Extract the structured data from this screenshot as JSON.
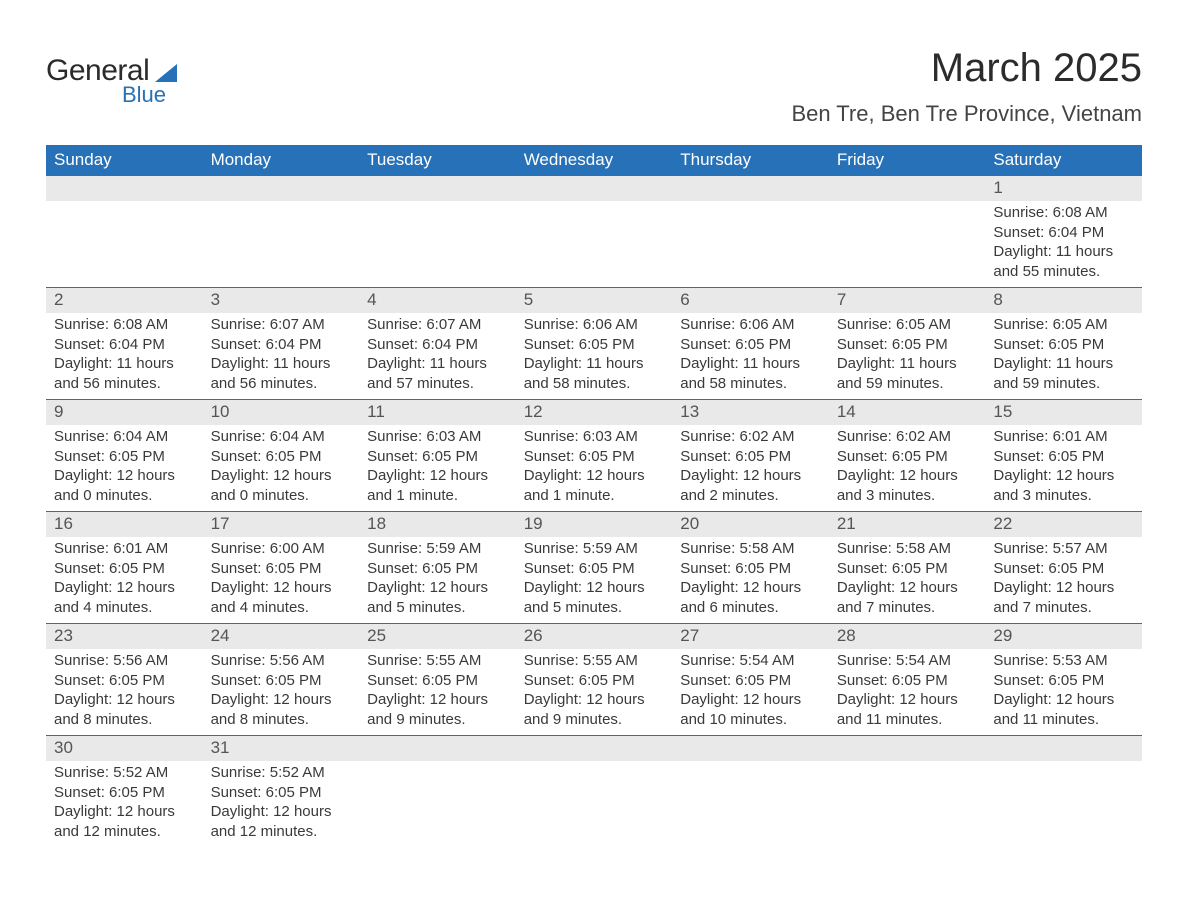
{
  "logo": {
    "text1": "General",
    "text2": "Blue"
  },
  "title": "March 2025",
  "location": "Ben Tre, Ben Tre Province, Vietnam",
  "colors": {
    "header_bg": "#2671b8",
    "header_text": "#ffffff",
    "daynum_bg": "#e9e9e9",
    "daynum_text": "#555555",
    "body_text": "#3a3a3a",
    "page_bg": "#ffffff",
    "row_border": "#2671b8"
  },
  "typography": {
    "title_fontsize": 40,
    "location_fontsize": 22,
    "dayhead_fontsize": 17,
    "daynum_fontsize": 17,
    "detail_fontsize": 15,
    "font_family": "Arial"
  },
  "day_headers": [
    "Sunday",
    "Monday",
    "Tuesday",
    "Wednesday",
    "Thursday",
    "Friday",
    "Saturday"
  ],
  "weeks": [
    [
      null,
      null,
      null,
      null,
      null,
      null,
      {
        "n": "1",
        "sunrise": "6:08 AM",
        "sunset": "6:04 PM",
        "daylight": "11 hours and 55 minutes."
      }
    ],
    [
      {
        "n": "2",
        "sunrise": "6:08 AM",
        "sunset": "6:04 PM",
        "daylight": "11 hours and 56 minutes."
      },
      {
        "n": "3",
        "sunrise": "6:07 AM",
        "sunset": "6:04 PM",
        "daylight": "11 hours and 56 minutes."
      },
      {
        "n": "4",
        "sunrise": "6:07 AM",
        "sunset": "6:04 PM",
        "daylight": "11 hours and 57 minutes."
      },
      {
        "n": "5",
        "sunrise": "6:06 AM",
        "sunset": "6:05 PM",
        "daylight": "11 hours and 58 minutes."
      },
      {
        "n": "6",
        "sunrise": "6:06 AM",
        "sunset": "6:05 PM",
        "daylight": "11 hours and 58 minutes."
      },
      {
        "n": "7",
        "sunrise": "6:05 AM",
        "sunset": "6:05 PM",
        "daylight": "11 hours and 59 minutes."
      },
      {
        "n": "8",
        "sunrise": "6:05 AM",
        "sunset": "6:05 PM",
        "daylight": "11 hours and 59 minutes."
      }
    ],
    [
      {
        "n": "9",
        "sunrise": "6:04 AM",
        "sunset": "6:05 PM",
        "daylight": "12 hours and 0 minutes."
      },
      {
        "n": "10",
        "sunrise": "6:04 AM",
        "sunset": "6:05 PM",
        "daylight": "12 hours and 0 minutes."
      },
      {
        "n": "11",
        "sunrise": "6:03 AM",
        "sunset": "6:05 PM",
        "daylight": "12 hours and 1 minute."
      },
      {
        "n": "12",
        "sunrise": "6:03 AM",
        "sunset": "6:05 PM",
        "daylight": "12 hours and 1 minute."
      },
      {
        "n": "13",
        "sunrise": "6:02 AM",
        "sunset": "6:05 PM",
        "daylight": "12 hours and 2 minutes."
      },
      {
        "n": "14",
        "sunrise": "6:02 AM",
        "sunset": "6:05 PM",
        "daylight": "12 hours and 3 minutes."
      },
      {
        "n": "15",
        "sunrise": "6:01 AM",
        "sunset": "6:05 PM",
        "daylight": "12 hours and 3 minutes."
      }
    ],
    [
      {
        "n": "16",
        "sunrise": "6:01 AM",
        "sunset": "6:05 PM",
        "daylight": "12 hours and 4 minutes."
      },
      {
        "n": "17",
        "sunrise": "6:00 AM",
        "sunset": "6:05 PM",
        "daylight": "12 hours and 4 minutes."
      },
      {
        "n": "18",
        "sunrise": "5:59 AM",
        "sunset": "6:05 PM",
        "daylight": "12 hours and 5 minutes."
      },
      {
        "n": "19",
        "sunrise": "5:59 AM",
        "sunset": "6:05 PM",
        "daylight": "12 hours and 5 minutes."
      },
      {
        "n": "20",
        "sunrise": "5:58 AM",
        "sunset": "6:05 PM",
        "daylight": "12 hours and 6 minutes."
      },
      {
        "n": "21",
        "sunrise": "5:58 AM",
        "sunset": "6:05 PM",
        "daylight": "12 hours and 7 minutes."
      },
      {
        "n": "22",
        "sunrise": "5:57 AM",
        "sunset": "6:05 PM",
        "daylight": "12 hours and 7 minutes."
      }
    ],
    [
      {
        "n": "23",
        "sunrise": "5:56 AM",
        "sunset": "6:05 PM",
        "daylight": "12 hours and 8 minutes."
      },
      {
        "n": "24",
        "sunrise": "5:56 AM",
        "sunset": "6:05 PM",
        "daylight": "12 hours and 8 minutes."
      },
      {
        "n": "25",
        "sunrise": "5:55 AM",
        "sunset": "6:05 PM",
        "daylight": "12 hours and 9 minutes."
      },
      {
        "n": "26",
        "sunrise": "5:55 AM",
        "sunset": "6:05 PM",
        "daylight": "12 hours and 9 minutes."
      },
      {
        "n": "27",
        "sunrise": "5:54 AM",
        "sunset": "6:05 PM",
        "daylight": "12 hours and 10 minutes."
      },
      {
        "n": "28",
        "sunrise": "5:54 AM",
        "sunset": "6:05 PM",
        "daylight": "12 hours and 11 minutes."
      },
      {
        "n": "29",
        "sunrise": "5:53 AM",
        "sunset": "6:05 PM",
        "daylight": "12 hours and 11 minutes."
      }
    ],
    [
      {
        "n": "30",
        "sunrise": "5:52 AM",
        "sunset": "6:05 PM",
        "daylight": "12 hours and 12 minutes."
      },
      {
        "n": "31",
        "sunrise": "5:52 AM",
        "sunset": "6:05 PM",
        "daylight": "12 hours and 12 minutes."
      },
      null,
      null,
      null,
      null,
      null
    ]
  ],
  "labels": {
    "sunrise": "Sunrise:",
    "sunset": "Sunset:",
    "daylight": "Daylight:"
  }
}
